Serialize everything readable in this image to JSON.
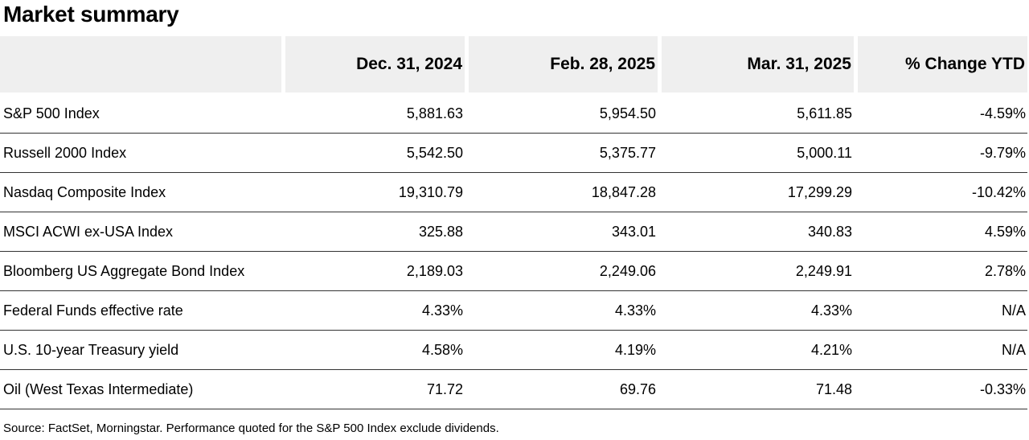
{
  "title": "Market summary",
  "table": {
    "header": [
      "",
      "Dec. 31, 2024",
      "Feb. 28, 2025",
      "Mar. 31, 2025",
      "% Change YTD"
    ],
    "rows": [
      [
        "S&P 500 Index",
        "5,881.63",
        "5,954.50",
        "5,611.85",
        "-4.59%"
      ],
      [
        "Russell 2000 Index",
        "5,542.50",
        "5,375.77",
        "5,000.11",
        "-9.79%"
      ],
      [
        "Nasdaq Composite Index",
        "19,310.79",
        "18,847.28",
        "17,299.29",
        "-10.42%"
      ],
      [
        "MSCI ACWI ex-USA Index",
        "325.88",
        "343.01",
        "340.83",
        "4.59%"
      ],
      [
        "Bloomberg US Aggregate Bond Index",
        "2,189.03",
        "2,249.06",
        "2,249.91",
        "2.78%"
      ],
      [
        "Federal Funds effective rate",
        "4.33%",
        "4.33%",
        "4.33%",
        "N/A"
      ],
      [
        "U.S. 10-year Treasury yield",
        "4.58%",
        "4.19%",
        "4.21%",
        "N/A"
      ],
      [
        "Oil (West Texas Intermediate)",
        "71.72",
        "69.76",
        "71.48",
        "-0.33%"
      ]
    ]
  },
  "source": "Source: FactSet, Morningstar. Performance quoted for the S&P 500 Index exclude dividends."
}
